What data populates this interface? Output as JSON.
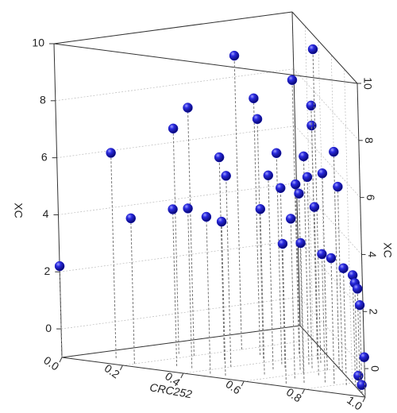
{
  "chart_data": {
    "type": "scatter3d",
    "xlabel": "CRC252",
    "zlabel": "XC",
    "x": [
      0,
      0.1,
      0.2,
      0.15,
      0.2,
      0.2,
      0.3,
      0.3,
      0.35,
      0.3,
      0.35,
      0.4,
      0.45,
      0.5,
      0.35,
      0.45,
      0.5,
      0.45,
      0.5,
      0.5,
      0.55,
      0.55,
      0.45,
      0.55,
      0.6,
      0.6,
      0.65,
      0.65,
      0.65,
      0.6,
      0.5,
      0.7,
      0.72,
      0.75,
      0.78,
      0.82,
      0.85,
      0.88,
      0.92,
      0.95,
      1.0,
      0.9,
      0.95
    ],
    "y": [
      0,
      0.1,
      0.05,
      0.3,
      0.3,
      0.5,
      0.1,
      0.3,
      0.1,
      0.45,
      0.4,
      0.2,
      0.05,
      0.05,
      0.55,
      0.35,
      0.25,
      0.5,
      0.3,
      0.4,
      0.15,
      0.3,
      0.5,
      0.35,
      0.35,
      0.25,
      0.15,
      0.25,
      0.35,
      0.4,
      0.45,
      0.05,
      0.1,
      0.15,
      0.15,
      0.15,
      0.15,
      0.12,
      0.08,
      0.05,
      0,
      0.1,
      0.05
    ],
    "z": [
      2.2,
      6.2,
      4.1,
      6.9,
      7.7,
      9.3,
      4.5,
      6.1,
      4.6,
      8.0,
      7.4,
      5.7,
      4.5,
      4.4,
      8.6,
      6.4,
      5.8,
      7.2,
      5.3,
      6.3,
      4.8,
      5.5,
      7.9,
      5.7,
      5.9,
      5.3,
      4.6,
      4.9,
      5.5,
      6.6,
      10.0,
      3.9,
      3.9,
      3.5,
      3.4,
      3.1,
      2.9,
      2.7,
      2.6,
      2.1,
      0.4,
      -0.5,
      -0.7
    ],
    "xlim": [
      0,
      1
    ],
    "ylim": [
      0,
      1
    ],
    "zlim": [
      -1,
      10
    ],
    "xticks": [
      {
        "value": 0,
        "label": "0.0"
      },
      {
        "value": 0.2,
        "label": "0.2"
      },
      {
        "value": 0.4,
        "label": "0.4"
      },
      {
        "value": 0.6,
        "label": "0.6"
      },
      {
        "value": 0.8,
        "label": "0.8"
      },
      {
        "value": 1,
        "label": "1.0"
      }
    ],
    "zticks": [
      0,
      2,
      4,
      6,
      8,
      10
    ],
    "color": "#1c1cc8",
    "grid": true,
    "drop_lines": true
  }
}
